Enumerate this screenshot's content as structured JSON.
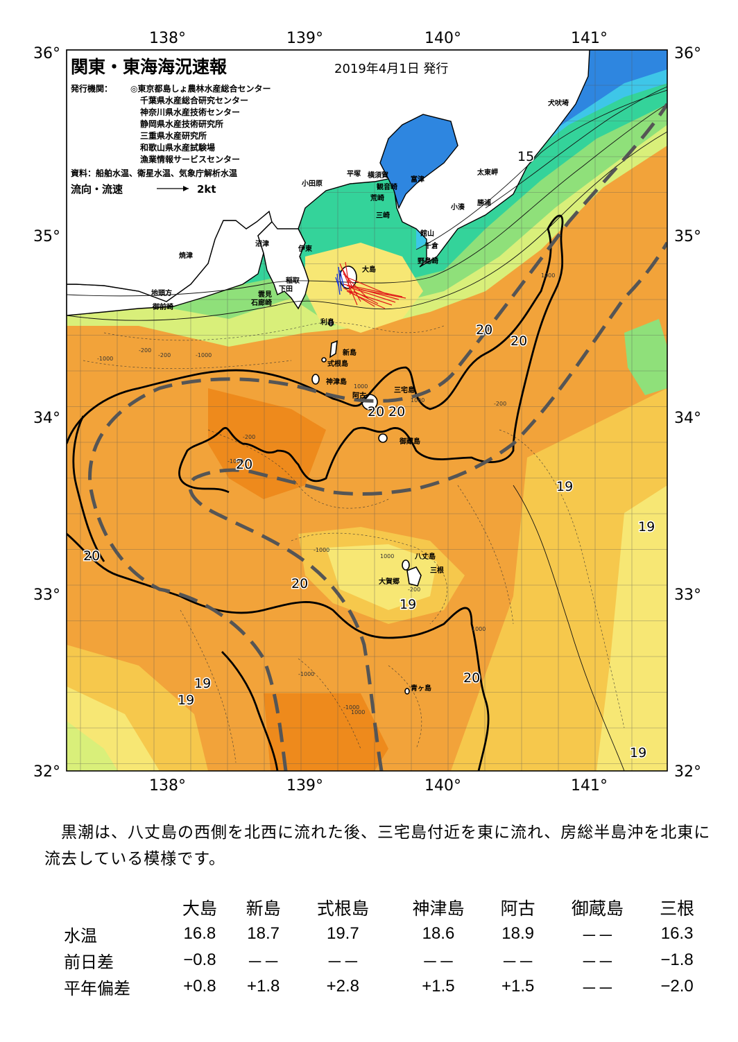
{
  "map": {
    "title": "関東・東海海況速報",
    "issue_date": "2019年4月1日 発行",
    "issuer_label": "発行機関：",
    "issuers": [
      "◎東京都島しょ農林水産総合センター",
      "千葉県水産総合研究センター",
      "神奈川県水産技術センター",
      "静岡県水産技術研究所",
      "三重県水産研究所",
      "和歌山県水産試験場",
      "漁業情報サービスセンター"
    ],
    "sources": "資料：船舶水温、衛星水温、気象庁解析水温",
    "current_legend_label": "流向・流速",
    "current_legend_value": "2kt",
    "lon_labels": [
      "138°",
      "139°",
      "140°",
      "141°"
    ],
    "lat_labels": [
      "36°",
      "35°",
      "34°",
      "33°",
      "32°"
    ],
    "colors": {
      "land": "#ffffff",
      "sst_15": "#2e86e0",
      "sst_16": "#3ec6e8",
      "sst_17": "#34d39a",
      "sst_18": "#8fe07a",
      "sst_185": "#d9ef7a",
      "sst_19": "#f7e774",
      "sst_195": "#f6c84c",
      "sst_20": "#f2a33a",
      "sst_205": "#ee8a1c",
      "kuroshio_axis": "#555555",
      "current_red": "#e01818",
      "current_blue": "#1a3ad8"
    },
    "place_names": [
      "犬吠埼",
      "太東岬",
      "勝浦",
      "小湊",
      "平塚",
      "横須賀",
      "観音崎",
      "富津",
      "荒崎",
      "三崎",
      "館山",
      "千倉",
      "野島崎",
      "小田原",
      "沼津",
      "伊東",
      "焼津",
      "稲取",
      "下田",
      "雲見",
      "石廊崎",
      "地頭方",
      "御前崎",
      "大島",
      "利島",
      "新島",
      "式根島",
      "神津島",
      "三宅島",
      "阿古",
      "御蔵島",
      "八丈島",
      "三根",
      "大賀郷",
      "青ヶ島"
    ],
    "isotherm_labels": [
      "15",
      "20",
      "20",
      "20",
      "20",
      "20",
      "20",
      "20",
      "19",
      "19",
      "19",
      "19",
      "19",
      "19",
      "20"
    ],
    "depth_labels": [
      "-200",
      "-1000",
      "-200",
      "-1000",
      "1000",
      "-200",
      "-1000",
      "1000",
      "-1000",
      "-1000",
      "1000",
      "1000",
      "1000",
      "-200",
      "1000",
      "-200",
      "-1000"
    ]
  },
  "summary": "黒潮は、八丈島の西側を北西に流れた後、三宅島付近を東に流れ、房総半島沖を北東に流去している模様です。",
  "table": {
    "stations": [
      "大島",
      "新島",
      "式根島",
      "神津島",
      "阿古",
      "御蔵島",
      "三根"
    ],
    "rows": [
      {
        "label": "水温",
        "values": [
          "16.8",
          "18.7",
          "19.7",
          "18.6",
          "18.9",
          "－－",
          "16.3"
        ]
      },
      {
        "label": "前日差",
        "values": [
          "−0.8",
          "－－",
          "－－",
          "－－",
          "－－",
          "－－",
          "−1.8"
        ]
      },
      {
        "label": "平年偏差",
        "values": [
          "+0.8",
          "+1.8",
          "+2.8",
          "+1.5",
          "+1.5",
          "－－",
          "−2.0"
        ]
      }
    ]
  }
}
